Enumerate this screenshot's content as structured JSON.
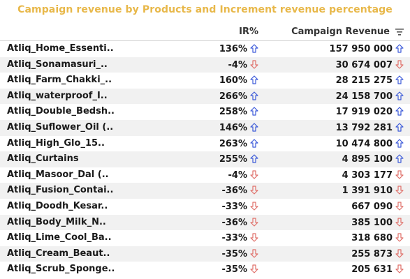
{
  "title": "Campaign revenue by Products and Increment revenue percentage",
  "columns": {
    "ir": "IR%",
    "revenue": "Campaign Revenue"
  },
  "colors": {
    "up": "#3d5bd9",
    "down": "#e0706a",
    "title": "#e8b84a"
  },
  "rows": [
    {
      "product": "Atliq_Home_Essenti..",
      "ir": "136%",
      "ir_dir": "up",
      "revenue": "157 950 000",
      "rev_dir": "up"
    },
    {
      "product": "Atliq_Sonamasuri_..",
      "ir": "-4%",
      "ir_dir": "down",
      "revenue": "30 674 007",
      "rev_dir": "down"
    },
    {
      "product": "Atliq_Farm_Chakki_..",
      "ir": "160%",
      "ir_dir": "up",
      "revenue": "28 215 275",
      "rev_dir": "up"
    },
    {
      "product": "Atliq_waterproof_I..",
      "ir": "266%",
      "ir_dir": "up",
      "revenue": "24 158 700",
      "rev_dir": "up"
    },
    {
      "product": "Atliq_Double_Bedsh..",
      "ir": "258%",
      "ir_dir": "up",
      "revenue": "17 919 020",
      "rev_dir": "up"
    },
    {
      "product": "Atliq_Suflower_Oil (..",
      "ir": "146%",
      "ir_dir": "up",
      "revenue": "13 792 281",
      "rev_dir": "up"
    },
    {
      "product": "Atliq_High_Glo_15..",
      "ir": "263%",
      "ir_dir": "up",
      "revenue": "10 474 800",
      "rev_dir": "up"
    },
    {
      "product": "Atliq_Curtains",
      "ir": "255%",
      "ir_dir": "up",
      "revenue": "4 895 100",
      "rev_dir": "up"
    },
    {
      "product": "Atliq_Masoor_Dal (..",
      "ir": "-4%",
      "ir_dir": "down",
      "revenue": "4 303 177",
      "rev_dir": "down"
    },
    {
      "product": "Atliq_Fusion_Contai..",
      "ir": "-36%",
      "ir_dir": "down",
      "revenue": "1 391 910",
      "rev_dir": "down"
    },
    {
      "product": "Atliq_Doodh_Kesar..",
      "ir": "-33%",
      "ir_dir": "down",
      "revenue": "667 090",
      "rev_dir": "down"
    },
    {
      "product": "Atliq_Body_Milk_N..",
      "ir": "-36%",
      "ir_dir": "down",
      "revenue": "385 100",
      "rev_dir": "down"
    },
    {
      "product": "Atliq_Lime_Cool_Ba..",
      "ir": "-33%",
      "ir_dir": "down",
      "revenue": "318 680",
      "rev_dir": "down"
    },
    {
      "product": "Atliq_Cream_Beaut..",
      "ir": "-35%",
      "ir_dir": "down",
      "revenue": "255 873",
      "rev_dir": "down"
    },
    {
      "product": "Atliq_Scrub_Sponge..",
      "ir": "-35%",
      "ir_dir": "down",
      "revenue": "205 631",
      "rev_dir": "down"
    }
  ]
}
